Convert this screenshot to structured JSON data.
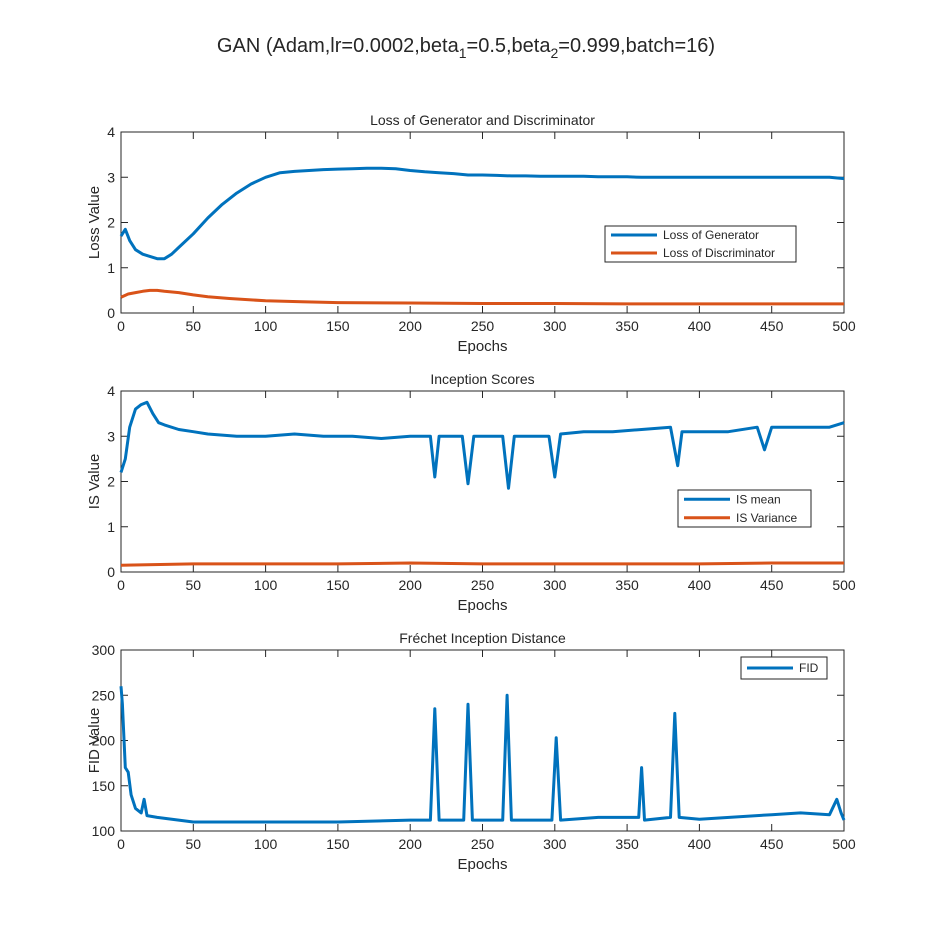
{
  "figure": {
    "title_main": "GAN (Adam,lr=0.0002,beta",
    "title_sub1": "1",
    "title_mid": "=0.5,beta",
    "title_sub2": "2",
    "title_end": "=0.999,batch=16)"
  },
  "chart_data": [
    {
      "type": "line",
      "title": "Loss of Generator and Discriminator",
      "xlabel": "Epochs",
      "ylabel": "Loss Value",
      "xlim": [
        0,
        500
      ],
      "ylim": [
        0,
        4
      ],
      "xticks": [
        0,
        50,
        100,
        150,
        200,
        250,
        300,
        350,
        400,
        450,
        500
      ],
      "yticks": [
        0,
        1,
        2,
        3,
        4
      ],
      "grid": false,
      "legend_position": "right",
      "series": [
        {
          "name": "Loss of Generator",
          "color": "#0072BD",
          "x": [
            0,
            3,
            6,
            10,
            15,
            20,
            25,
            30,
            35,
            40,
            50,
            60,
            70,
            80,
            90,
            100,
            110,
            120,
            130,
            140,
            150,
            160,
            170,
            180,
            190,
            200,
            210,
            220,
            230,
            240,
            250,
            260,
            270,
            280,
            290,
            300,
            310,
            320,
            330,
            340,
            350,
            360,
            370,
            380,
            390,
            400,
            410,
            420,
            430,
            440,
            450,
            460,
            470,
            480,
            490,
            500
          ],
          "y": [
            1.7,
            1.85,
            1.6,
            1.4,
            1.3,
            1.25,
            1.2,
            1.2,
            1.3,
            1.45,
            1.75,
            2.1,
            2.4,
            2.65,
            2.85,
            3.0,
            3.1,
            3.13,
            3.15,
            3.17,
            3.18,
            3.19,
            3.2,
            3.2,
            3.19,
            3.15,
            3.12,
            3.1,
            3.08,
            3.05,
            3.05,
            3.04,
            3.03,
            3.03,
            3.02,
            3.02,
            3.02,
            3.02,
            3.01,
            3.01,
            3.01,
            3.0,
            3.0,
            3.0,
            3.0,
            3.0,
            3.0,
            3.0,
            3.0,
            3.0,
            3.0,
            3.0,
            3.0,
            3.0,
            3.0,
            2.97
          ]
        },
        {
          "name": "Loss of Discriminator",
          "color": "#D95319",
          "x": [
            0,
            5,
            10,
            15,
            20,
            25,
            30,
            40,
            50,
            60,
            75,
            100,
            125,
            150,
            200,
            250,
            300,
            350,
            400,
            450,
            500
          ],
          "y": [
            0.35,
            0.42,
            0.45,
            0.48,
            0.5,
            0.5,
            0.48,
            0.45,
            0.4,
            0.36,
            0.32,
            0.27,
            0.25,
            0.23,
            0.22,
            0.21,
            0.21,
            0.2,
            0.2,
            0.2,
            0.2
          ]
        }
      ]
    },
    {
      "type": "line",
      "title": "Inception Scores",
      "xlabel": "Epochs",
      "ylabel": "IS Value",
      "xlim": [
        0,
        500
      ],
      "ylim": [
        0,
        4
      ],
      "xticks": [
        0,
        50,
        100,
        150,
        200,
        250,
        300,
        350,
        400,
        450,
        500
      ],
      "yticks": [
        0,
        1,
        2,
        3,
        4
      ],
      "grid": false,
      "legend_position": "lower right",
      "series": [
        {
          "name": "IS mean",
          "color": "#0072BD",
          "x": [
            0,
            3,
            6,
            10,
            14,
            18,
            22,
            26,
            30,
            40,
            50,
            60,
            80,
            100,
            120,
            140,
            160,
            180,
            200,
            214,
            217,
            220,
            236,
            240,
            244,
            264,
            268,
            272,
            296,
            300,
            304,
            320,
            340,
            360,
            380,
            385,
            388,
            400,
            420,
            440,
            445,
            450,
            470,
            490,
            500
          ],
          "y": [
            2.2,
            2.5,
            3.2,
            3.6,
            3.7,
            3.75,
            3.5,
            3.3,
            3.25,
            3.15,
            3.1,
            3.05,
            3.0,
            3.0,
            3.05,
            3.0,
            3.0,
            2.95,
            3.0,
            3.0,
            2.1,
            3.0,
            3.0,
            1.95,
            3.0,
            3.0,
            1.85,
            3.0,
            3.0,
            2.1,
            3.05,
            3.1,
            3.1,
            3.15,
            3.2,
            2.35,
            3.1,
            3.1,
            3.1,
            3.2,
            2.7,
            3.2,
            3.2,
            3.2,
            3.3
          ]
        },
        {
          "name": "IS Variance",
          "color": "#D95319",
          "x": [
            0,
            50,
            100,
            150,
            200,
            250,
            300,
            350,
            400,
            450,
            500
          ],
          "y": [
            0.15,
            0.18,
            0.18,
            0.18,
            0.2,
            0.18,
            0.18,
            0.18,
            0.18,
            0.2,
            0.2
          ]
        }
      ]
    },
    {
      "type": "line",
      "title": "Fréchet Inception Distance",
      "xlabel": "Epochs",
      "ylabel": "FID Value",
      "xlim": [
        0,
        500
      ],
      "ylim": [
        100,
        300
      ],
      "xticks": [
        0,
        50,
        100,
        150,
        200,
        250,
        300,
        350,
        400,
        450,
        500
      ],
      "yticks": [
        100,
        150,
        200,
        250,
        300
      ],
      "grid": false,
      "legend_position": "top-right",
      "series": [
        {
          "name": "FID",
          "color": "#0072BD",
          "x": [
            0,
            1,
            3,
            5,
            7,
            10,
            14,
            16,
            18,
            25,
            50,
            100,
            150,
            200,
            214,
            217,
            220,
            237,
            240,
            243,
            264,
            267,
            270,
            298,
            301,
            304,
            330,
            358,
            360,
            362,
            380,
            383,
            386,
            400,
            450,
            470,
            490,
            495,
            498,
            500
          ],
          "y": [
            260,
            240,
            170,
            165,
            140,
            125,
            120,
            135,
            117,
            115,
            110,
            110,
            110,
            112,
            112,
            235,
            112,
            112,
            240,
            112,
            112,
            250,
            112,
            112,
            203,
            112,
            115,
            115,
            170,
            112,
            115,
            230,
            115,
            113,
            118,
            120,
            118,
            135,
            120,
            112
          ]
        }
      ]
    }
  ]
}
